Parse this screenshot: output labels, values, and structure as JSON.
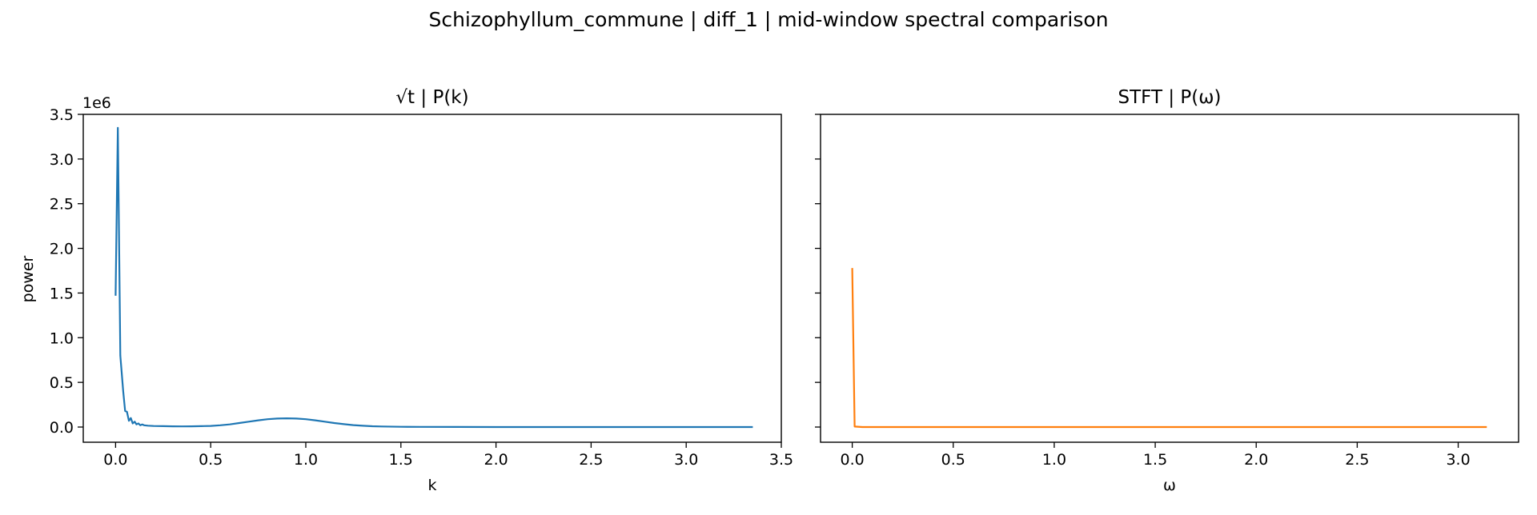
{
  "figure": {
    "suptitle": "Schizophyllum_commune | diff_1 | mid-window spectral comparison"
  },
  "chart_data": [
    {
      "type": "line",
      "title": "√t | P(k)",
      "xlabel": "k",
      "ylabel": "power",
      "y_offset_label": "1e6",
      "xlim": [
        -0.17,
        3.5
      ],
      "ylim": [
        -0.17,
        3.5
      ],
      "xticks": [
        0.0,
        0.5,
        1.0,
        1.5,
        2.0,
        2.5,
        3.0,
        3.5
      ],
      "xtick_labels": [
        "0.0",
        "0.5",
        "1.0",
        "1.5",
        "2.0",
        "2.5",
        "3.0",
        "3.5"
      ],
      "yticks": [
        0.0,
        0.5,
        1.0,
        1.5,
        2.0,
        2.5,
        3.0,
        3.5
      ],
      "ytick_labels": [
        "0.0",
        "0.5",
        "1.0",
        "1.5",
        "2.0",
        "2.5",
        "3.0",
        "3.5"
      ],
      "grid": false,
      "series": [
        {
          "color": "#1f77b4",
          "x": [
            0.0,
            0.012,
            0.025,
            0.04,
            0.05,
            0.06,
            0.07,
            0.08,
            0.09,
            0.1,
            0.11,
            0.12,
            0.13,
            0.14,
            0.15,
            0.17,
            0.2,
            0.25,
            0.3,
            0.35,
            0.4,
            0.45,
            0.5,
            0.55,
            0.6,
            0.65,
            0.7,
            0.75,
            0.8,
            0.85,
            0.9,
            0.95,
            1.0,
            1.05,
            1.1,
            1.15,
            1.2,
            1.25,
            1.3,
            1.35,
            1.4,
            1.5,
            1.6,
            1.8,
            2.0,
            2.5,
            3.0,
            3.35
          ],
          "y": [
            1.47,
            3.35,
            0.8,
            0.4,
            0.18,
            0.17,
            0.07,
            0.1,
            0.04,
            0.06,
            0.03,
            0.04,
            0.02,
            0.03,
            0.02,
            0.015,
            0.012,
            0.01,
            0.008,
            0.007,
            0.008,
            0.01,
            0.013,
            0.02,
            0.03,
            0.045,
            0.06,
            0.075,
            0.088,
            0.095,
            0.098,
            0.095,
            0.088,
            0.075,
            0.06,
            0.045,
            0.032,
            0.022,
            0.014,
            0.009,
            0.006,
            0.003,
            0.002,
            0.001,
            0.0005,
            0.0003,
            0.0002,
            0.0001
          ]
        }
      ]
    },
    {
      "type": "line",
      "title": "STFT | P(ω)",
      "xlabel": "ω",
      "ylabel": "",
      "xlim": [
        -0.157,
        3.299
      ],
      "ylim": [
        -0.17,
        3.5
      ],
      "xticks": [
        0.0,
        0.5,
        1.0,
        1.5,
        2.0,
        2.5,
        3.0
      ],
      "xtick_labels": [
        "0.0",
        "0.5",
        "1.0",
        "1.5",
        "2.0",
        "2.5",
        "3.0"
      ],
      "yticks": [
        0.0,
        0.5,
        1.0,
        1.5,
        2.0,
        2.5,
        3.0,
        3.5
      ],
      "ytick_labels": [],
      "grid": false,
      "series": [
        {
          "color": "#ff7f0e",
          "x": [
            0.0,
            0.012,
            0.05,
            0.5,
            1.0,
            1.5,
            2.0,
            2.5,
            3.0,
            3.1416
          ],
          "y": [
            1.78,
            0.005,
            0.0,
            0.0,
            0.0,
            0.0,
            0.0,
            0.0,
            0.0,
            0.0
          ]
        }
      ]
    }
  ]
}
